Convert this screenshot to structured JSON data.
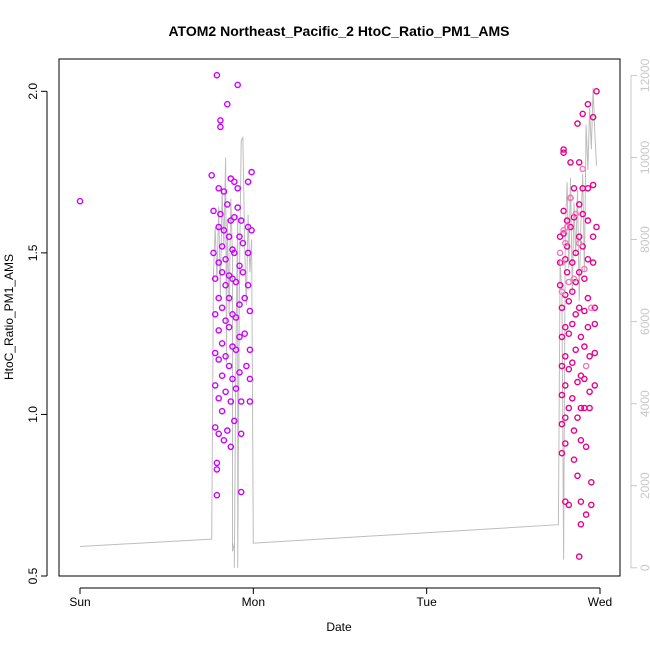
{
  "chart_data": {
    "type": "scatter",
    "title": "ATOM2 Northeast_Pacific_2 HtoC_Ratio_PM1_AMS",
    "xlabel": "Date",
    "ylabel": "HtoC_Ratio_PM1_AMS",
    "x_ticks": [
      "Sun",
      "Mon",
      "Tue",
      "Wed"
    ],
    "x_domain_days": [
      0,
      3.0
    ],
    "ylim": [
      0.5,
      2.1
    ],
    "y_ticks": [
      0.5,
      1.0,
      1.5,
      2.0
    ],
    "y2lim": [
      -200,
      12400
    ],
    "y2_ticks": [
      0,
      2000,
      4000,
      6000,
      8000,
      10000,
      12000
    ],
    "grid": false,
    "legend": "none",
    "colors": {
      "series_a": "#cc00ff",
      "series_b": "#e6008a",
      "series_b_light": "#f07ab8",
      "secondary_line": "#bdbdbd"
    },
    "series": [
      {
        "color": "#cc00ff",
        "points": [
          [
            0.0,
            1.66
          ],
          [
            0.76,
            1.74
          ],
          [
            0.77,
            1.63
          ],
          [
            0.77,
            1.5
          ],
          [
            0.78,
            1.42
          ],
          [
            0.78,
            1.31
          ],
          [
            0.78,
            1.19
          ],
          [
            0.78,
            1.09
          ],
          [
            0.78,
            0.96
          ],
          [
            0.79,
            0.85
          ],
          [
            0.79,
            0.83
          ],
          [
            0.79,
            0.75
          ],
          [
            0.79,
            2.05
          ],
          [
            0.8,
            1.7
          ],
          [
            0.8,
            1.58
          ],
          [
            0.8,
            1.47
          ],
          [
            0.8,
            1.36
          ],
          [
            0.8,
            1.26
          ],
          [
            0.8,
            1.17
          ],
          [
            0.8,
            1.05
          ],
          [
            0.8,
            0.94
          ],
          [
            0.81,
            1.91
          ],
          [
            0.81,
            1.89
          ],
          [
            0.81,
            1.62
          ],
          [
            0.82,
            1.52
          ],
          [
            0.82,
            1.44
          ],
          [
            0.82,
            1.33
          ],
          [
            0.82,
            1.22
          ],
          [
            0.82,
            1.12
          ],
          [
            0.82,
            1.01
          ],
          [
            0.83,
            0.92
          ],
          [
            0.83,
            1.69
          ],
          [
            0.83,
            1.57
          ],
          [
            0.84,
            1.48
          ],
          [
            0.84,
            1.4
          ],
          [
            0.84,
            1.29
          ],
          [
            0.84,
            1.18
          ],
          [
            0.84,
            1.07
          ],
          [
            0.85,
            0.95
          ],
          [
            0.85,
            1.96
          ],
          [
            0.85,
            1.65
          ],
          [
            0.86,
            1.55
          ],
          [
            0.86,
            1.43
          ],
          [
            0.86,
            1.36
          ],
          [
            0.86,
            1.27
          ],
          [
            0.86,
            1.15
          ],
          [
            0.87,
            1.04
          ],
          [
            0.87,
            0.9
          ],
          [
            0.87,
            1.73
          ],
          [
            0.87,
            1.6
          ],
          [
            0.88,
            1.51
          ],
          [
            0.88,
            1.42
          ],
          [
            0.88,
            1.31
          ],
          [
            0.88,
            1.21
          ],
          [
            0.88,
            1.11
          ],
          [
            0.89,
            0.98
          ],
          [
            0.89,
            1.72
          ],
          [
            0.89,
            1.61
          ],
          [
            0.89,
            1.5
          ],
          [
            0.9,
            1.41
          ],
          [
            0.9,
            1.3
          ],
          [
            0.9,
            1.2
          ],
          [
            0.9,
            1.08
          ],
          [
            0.91,
            2.02
          ],
          [
            0.91,
            1.7
          ],
          [
            0.91,
            1.64
          ],
          [
            0.92,
            1.55
          ],
          [
            0.92,
            1.46
          ],
          [
            0.92,
            1.34
          ],
          [
            0.92,
            1.24
          ],
          [
            0.92,
            1.13
          ],
          [
            0.93,
            1.04
          ],
          [
            0.93,
            0.94
          ],
          [
            0.93,
            0.76
          ],
          [
            0.93,
            1.6
          ],
          [
            0.94,
            1.53
          ],
          [
            0.94,
            1.44
          ],
          [
            0.95,
            1.36
          ],
          [
            0.95,
            1.25
          ],
          [
            0.96,
            1.15
          ],
          [
            0.97,
            1.72
          ],
          [
            0.97,
            1.58
          ],
          [
            0.97,
            1.5
          ],
          [
            0.97,
            1.4
          ],
          [
            0.98,
            1.32
          ],
          [
            0.98,
            1.2
          ],
          [
            0.98,
            1.11
          ],
          [
            0.98,
            1.04
          ],
          [
            0.99,
            1.75
          ],
          [
            0.99,
            1.57
          ]
        ]
      },
      {
        "color": "#e6008a",
        "points": [
          [
            2.77,
            1.55
          ],
          [
            2.77,
            1.47
          ],
          [
            2.77,
            1.4
          ],
          [
            2.78,
            1.33
          ],
          [
            2.78,
            1.24
          ],
          [
            2.78,
            1.15
          ],
          [
            2.78,
            1.06
          ],
          [
            2.78,
            0.97
          ],
          [
            2.78,
            0.88
          ],
          [
            2.79,
            1.81
          ],
          [
            2.79,
            1.82
          ],
          [
            2.79,
            1.63
          ],
          [
            2.79,
            1.56
          ],
          [
            2.8,
            1.48
          ],
          [
            2.8,
            1.37
          ],
          [
            2.8,
            1.27
          ],
          [
            2.8,
            1.18
          ],
          [
            2.8,
            1.09
          ],
          [
            2.8,
            0.99
          ],
          [
            2.8,
            0.91
          ],
          [
            2.8,
            0.73
          ],
          [
            2.81,
            1.6
          ],
          [
            2.81,
            1.52
          ],
          [
            2.81,
            1.44
          ],
          [
            2.82,
            1.35
          ],
          [
            2.82,
            1.25
          ],
          [
            2.82,
            1.14
          ],
          [
            2.82,
            1.02
          ],
          [
            2.82,
            0.72
          ],
          [
            2.83,
            1.78
          ],
          [
            2.83,
            1.67
          ],
          [
            2.83,
            1.58
          ],
          [
            2.84,
            1.47
          ],
          [
            2.84,
            1.38
          ],
          [
            2.84,
            1.28
          ],
          [
            2.84,
            1.16
          ],
          [
            2.84,
            1.05
          ],
          [
            2.85,
            0.95
          ],
          [
            2.85,
            0.86
          ],
          [
            2.85,
            1.7
          ],
          [
            2.85,
            1.61
          ],
          [
            2.86,
            1.5
          ],
          [
            2.86,
            1.41
          ],
          [
            2.86,
            1.31
          ],
          [
            2.86,
            1.2
          ],
          [
            2.87,
            1.1
          ],
          [
            2.87,
            0.99
          ],
          [
            2.87,
            0.81
          ],
          [
            2.87,
            1.9
          ],
          [
            2.88,
            1.78
          ],
          [
            2.88,
            1.65
          ],
          [
            2.88,
            1.55
          ],
          [
            2.88,
            1.44
          ],
          [
            2.88,
            1.33
          ],
          [
            2.89,
            1.24
          ],
          [
            2.89,
            1.12
          ],
          [
            2.89,
            1.02
          ],
          [
            2.89,
            0.92
          ],
          [
            2.89,
            0.73
          ],
          [
            2.89,
            0.66
          ],
          [
            2.88,
            0.56
          ],
          [
            2.9,
            1.93
          ],
          [
            2.9,
            1.7
          ],
          [
            2.9,
            1.62
          ],
          [
            2.9,
            1.52
          ],
          [
            2.91,
            1.42
          ],
          [
            2.91,
            1.32
          ],
          [
            2.91,
            1.21
          ],
          [
            2.91,
            1.11
          ],
          [
            2.91,
            1.02
          ],
          [
            2.92,
            0.9
          ],
          [
            2.92,
            0.69
          ],
          [
            2.93,
            1.96
          ],
          [
            2.93,
            1.7
          ],
          [
            2.93,
            1.6
          ],
          [
            2.93,
            1.48
          ],
          [
            2.93,
            1.36
          ],
          [
            2.93,
            1.27
          ],
          [
            2.94,
            1.18
          ],
          [
            2.94,
            1.07
          ],
          [
            2.94,
            1.02
          ],
          [
            2.95,
            0.79
          ],
          [
            2.95,
            0.72
          ],
          [
            2.96,
            1.92
          ],
          [
            2.96,
            1.71
          ],
          [
            2.96,
            1.55
          ],
          [
            2.96,
            1.47
          ],
          [
            2.97,
            1.33
          ],
          [
            2.97,
            1.28
          ],
          [
            2.97,
            1.19
          ],
          [
            2.97,
            1.09
          ],
          [
            2.98,
            1.58
          ],
          [
            2.98,
            2.0
          ]
        ]
      },
      {
        "color": "#f07ab8",
        "points": [
          [
            2.77,
            1.5
          ],
          [
            2.78,
            1.47
          ],
          [
            2.78,
            1.38
          ],
          [
            2.79,
            1.57
          ],
          [
            2.8,
            1.53
          ],
          [
            2.81,
            1.58
          ],
          [
            2.83,
            1.67
          ],
          [
            2.86,
            1.62
          ],
          [
            2.9,
            1.76
          ],
          [
            2.91,
            1.45
          ],
          [
            2.92,
            1.15
          ],
          [
            2.95,
            1.33
          ],
          [
            2.88,
            1.53
          ],
          [
            2.85,
            1.42
          ],
          [
            2.82,
            1.41
          ]
        ]
      }
    ],
    "secondary_line": {
      "color": "#bdbdbd",
      "points": [
        [
          0.0,
          520
        ],
        [
          0.76,
          700
        ],
        [
          0.77,
          7200
        ],
        [
          0.78,
          8300
        ],
        [
          0.79,
          7000
        ],
        [
          0.8,
          8800
        ],
        [
          0.81,
          6600
        ],
        [
          0.82,
          9200
        ],
        [
          0.83,
          7800
        ],
        [
          0.84,
          10000
        ],
        [
          0.845,
          5000
        ],
        [
          0.85,
          8500
        ],
        [
          0.86,
          6200
        ],
        [
          0.87,
          9000
        ],
        [
          0.88,
          7600
        ],
        [
          0.88,
          400
        ],
        [
          0.89,
          600
        ],
        [
          0.89,
          0
        ],
        [
          0.9,
          5400
        ],
        [
          0.91,
          8600
        ],
        [
          0.91,
          0
        ],
        [
          0.92,
          7200
        ],
        [
          0.93,
          10400
        ],
        [
          0.94,
          10500
        ],
        [
          0.95,
          7800
        ],
        [
          0.96,
          6400
        ],
        [
          0.97,
          8600
        ],
        [
          0.98,
          7200
        ],
        [
          0.99,
          8000
        ],
        [
          1.0,
          600
        ],
        [
          2.76,
          1050
        ],
        [
          2.77,
          7400
        ],
        [
          2.78,
          6800
        ],
        [
          2.79,
          200
        ],
        [
          2.8,
          8200
        ],
        [
          2.81,
          9400
        ],
        [
          2.82,
          7300
        ],
        [
          2.83,
          9500
        ],
        [
          2.84,
          6700
        ],
        [
          2.85,
          8900
        ],
        [
          2.86,
          7600
        ],
        [
          2.87,
          9200
        ],
        [
          2.88,
          6500
        ],
        [
          2.89,
          8400
        ],
        [
          2.9,
          9600
        ],
        [
          2.91,
          7200
        ],
        [
          2.92,
          10800
        ],
        [
          2.93,
          9700
        ],
        [
          2.94,
          11200
        ],
        [
          2.95,
          10200
        ],
        [
          2.96,
          11700
        ],
        [
          2.97,
          10600
        ],
        [
          2.98,
          9800
        ]
      ]
    }
  }
}
